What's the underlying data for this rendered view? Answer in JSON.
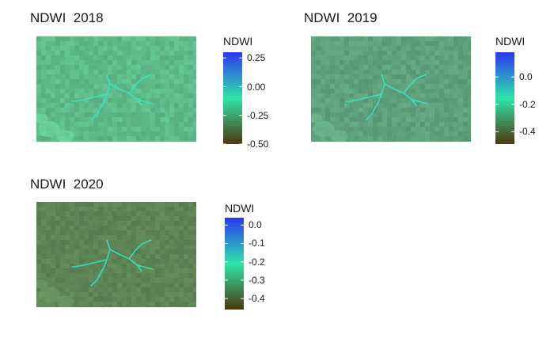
{
  "chart_data": [
    {
      "type": "heatmap",
      "title": "NDWI  2018",
      "variable": "NDWI",
      "legend": {
        "title": "NDWI",
        "limits": [
          -0.5,
          0.3
        ],
        "ticks": [
          0.25,
          0.0,
          -0.25,
          -0.5
        ],
        "tick_labels": [
          "0.25",
          "0.00",
          "-0.25",
          "-0.50"
        ],
        "placement": "right"
      },
      "palette": [
        "#4d3a12",
        "#2fe6a8",
        "#2c3bf0"
      ],
      "base_color": "#5fbd8a"
    },
    {
      "type": "heatmap",
      "title": "NDWI  2019",
      "variable": "NDWI",
      "legend": {
        "title": "NDWI",
        "limits": [
          -0.49,
          0.18
        ],
        "ticks": [
          0.0,
          -0.2,
          -0.4
        ],
        "tick_labels": [
          "0.0",
          "-0.2",
          "-0.4"
        ],
        "placement": "right"
      },
      "palette": [
        "#4d3a12",
        "#2fe6a8",
        "#2c3bf0"
      ],
      "base_color": "#5fa27c"
    },
    {
      "type": "heatmap",
      "title": "NDWI  2020",
      "variable": "NDWI",
      "legend": {
        "title": "NDWI",
        "limits": [
          -0.46,
          0.04
        ],
        "ticks": [
          0.0,
          -0.1,
          -0.2,
          -0.3,
          -0.4
        ],
        "tick_labels": [
          "0.0",
          "-0.1",
          "-0.2",
          "-0.3",
          "-0.4"
        ],
        "placement": "right"
      },
      "palette": [
        "#4d3a12",
        "#2fe6a8",
        "#2c3bf0"
      ],
      "base_color": "#5e8656"
    }
  ]
}
